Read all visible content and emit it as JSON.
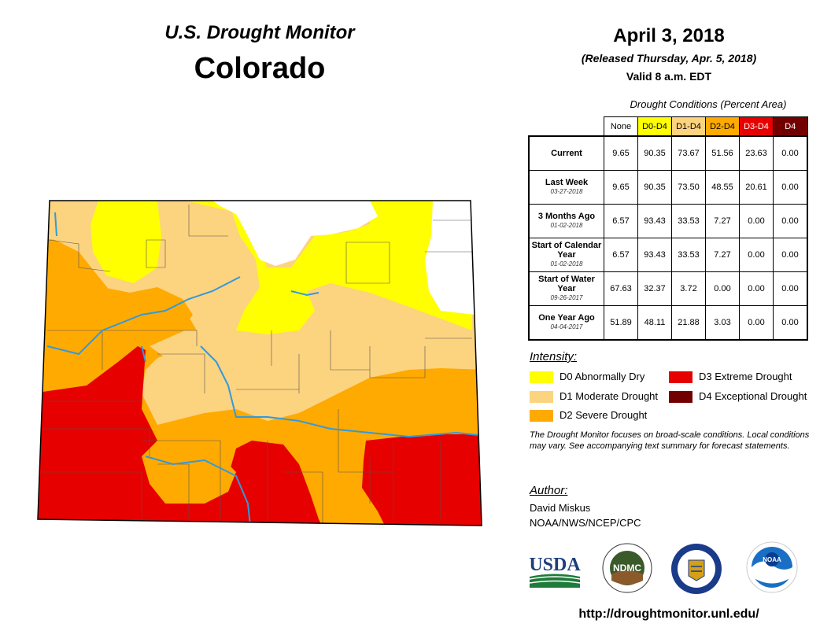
{
  "header": {
    "title": "U.S. Drought Monitor",
    "state": "Colorado",
    "date": "April 3, 2018",
    "released": "(Released Thursday, Apr. 5, 2018)",
    "valid": "Valid 8 a.m. EDT"
  },
  "table": {
    "caption": "Drought Conditions (Percent Area)",
    "columns": [
      {
        "label": "None",
        "bg": "#ffffff",
        "fg": "#000000"
      },
      {
        "label": "D0-D4",
        "bg": "#ffff00",
        "fg": "#000000"
      },
      {
        "label": "D1-D4",
        "bg": "#fcd37f",
        "fg": "#000000"
      },
      {
        "label": "D2-D4",
        "bg": "#ffaa00",
        "fg": "#000000"
      },
      {
        "label": "D3-D4",
        "bg": "#e60000",
        "fg": "#ffffff"
      },
      {
        "label": "D4",
        "bg": "#730000",
        "fg": "#ffffff"
      }
    ],
    "rows": [
      {
        "label": "Current",
        "date": "",
        "values": [
          "9.65",
          "90.35",
          "73.67",
          "51.56",
          "23.63",
          "0.00"
        ]
      },
      {
        "label": "Last Week",
        "date": "03-27-2018",
        "values": [
          "9.65",
          "90.35",
          "73.50",
          "48.55",
          "20.61",
          "0.00"
        ]
      },
      {
        "label": "3 Months Ago",
        "date": "01-02-2018",
        "values": [
          "6.57",
          "93.43",
          "33.53",
          "7.27",
          "0.00",
          "0.00"
        ]
      },
      {
        "label": "Start of Calendar Year",
        "date": "01-02-2018",
        "values": [
          "6.57",
          "93.43",
          "33.53",
          "7.27",
          "0.00",
          "0.00"
        ]
      },
      {
        "label": "Start of Water Year",
        "date": "09-26-2017",
        "values": [
          "67.63",
          "32.37",
          "3.72",
          "0.00",
          "0.00",
          "0.00"
        ]
      },
      {
        "label": "One Year Ago",
        "date": "04-04-2017",
        "values": [
          "51.89",
          "48.11",
          "21.88",
          "3.03",
          "0.00",
          "0.00"
        ]
      }
    ]
  },
  "legend": {
    "title": "Intensity:",
    "items": [
      {
        "label": "D0 Abnormally Dry",
        "color": "#ffff00"
      },
      {
        "label": "D1 Moderate Drought",
        "color": "#fcd37f"
      },
      {
        "label": "D2 Severe Drought",
        "color": "#ffaa00"
      },
      {
        "label": "D3 Extreme Drought",
        "color": "#e60000"
      },
      {
        "label": "D4 Exceptional Drought",
        "color": "#730000"
      }
    ]
  },
  "note": "The Drought Monitor focuses on broad-scale conditions. Local conditions may vary. See accompanying text summary for forecast statements.",
  "author": {
    "title": "Author:",
    "name": "David Miskus",
    "org": "NOAA/NWS/NCEP/CPC"
  },
  "logos": {
    "usda": "USDA",
    "ndmc": "NDMC",
    "noaa": "NOAA"
  },
  "url": "http://droughtmonitor.unl.edu/"
}
